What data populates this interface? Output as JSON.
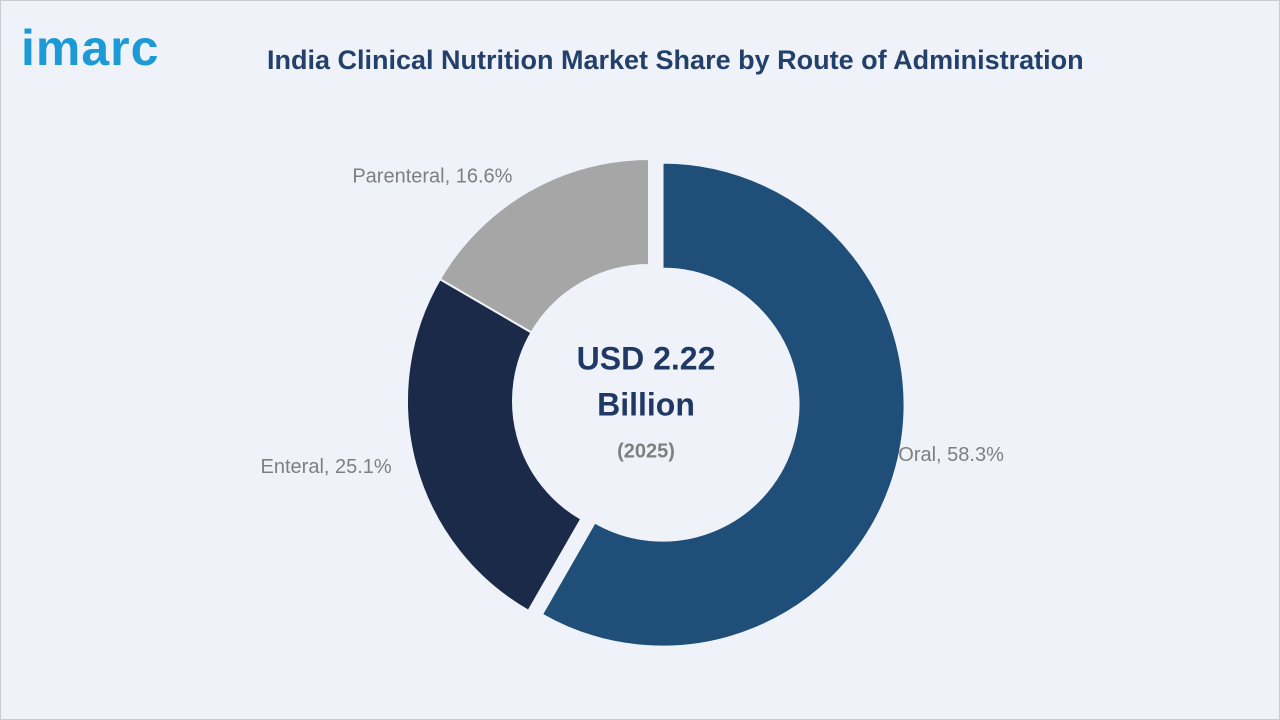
{
  "logo": "imarc",
  "chart_data": {
    "type": "pie",
    "donut": true,
    "title": "India Clinical Nutrition Market Share by Route of Administration",
    "categories": [
      "Oral",
      "Enteral",
      "Parenteral"
    ],
    "values": [
      58.3,
      25.1,
      16.6
    ],
    "value_labels": [
      "Oral, 58.3%",
      "Enteral, 25.1%",
      "Parenteral, 16.6%"
    ],
    "colors": [
      "#1f4e79",
      "#1b2a48",
      "#a6a6a6"
    ],
    "exploded": [
      true,
      false,
      false
    ],
    "center_text": [
      "USD 2.22",
      "Billion"
    ],
    "center_note": "(2025)"
  }
}
